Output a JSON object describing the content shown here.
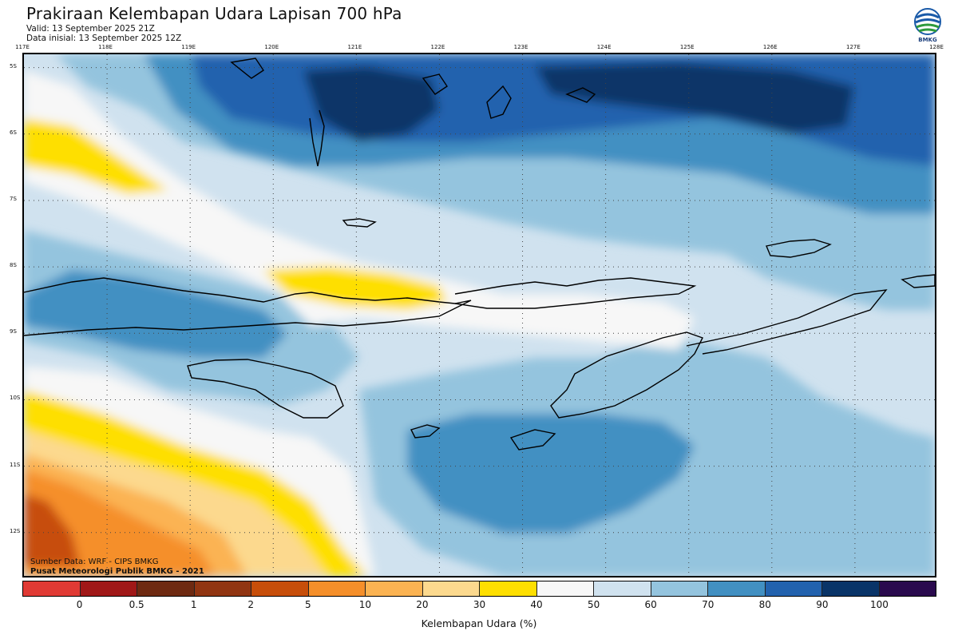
{
  "header": {
    "title": "Prakiraan Kelembapan Udara Lapisan 700 hPa",
    "valid": "Valid: 13 September 2025 21Z",
    "init": "Data inisial: 13 September 2025 12Z"
  },
  "logo": {
    "icon": "bmkg-logo-icon",
    "text": "BMKG"
  },
  "axes": {
    "longitudes": [
      "117E",
      "118E",
      "119E",
      "120E",
      "121E",
      "122E",
      "123E",
      "124E",
      "125E",
      "126E",
      "127E",
      "128E"
    ],
    "latitudes": [
      "5S",
      "6S",
      "7S",
      "8S",
      "9S",
      "10S",
      "11S",
      "12S"
    ],
    "lon_range": [
      117,
      128
    ],
    "lat_range": [
      -4.8,
      -12.7
    ],
    "grid": "dotted"
  },
  "credits": {
    "source": "Sumber Data: WRF - CIPS BMKG",
    "org": "Pusat Meteorologi Publik BMKG - 2021"
  },
  "colorbar": {
    "title": "Kelembapan Udara (%)",
    "labels": [
      "0",
      "0.5",
      "1",
      "2",
      "5",
      "10",
      "20",
      "30",
      "40",
      "50",
      "60",
      "70",
      "80",
      "90",
      "100"
    ],
    "colors": [
      "#e03a34",
      "#a01818",
      "#6e2a12",
      "#913512",
      "#c74e0a",
      "#f58f2a",
      "#fbb352",
      "#fcd98e",
      "#fedf00",
      "#f7f7f7",
      "#d0e2ef",
      "#94c4de",
      "#4290c2",
      "#2262ae",
      "#093468",
      "#2a0a4e"
    ]
  }
}
